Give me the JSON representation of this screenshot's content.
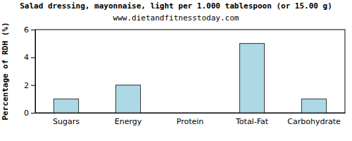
{
  "chart_data": {
    "type": "bar",
    "title": "Salad dressing, mayonnaise, light per 1.000 tablespoon (or 15.00 g)",
    "subtitle": "www.dietandfitnesstoday.com",
    "y_label": "Percentage of RDH (%)",
    "categories": [
      "Sugars",
      "Energy",
      "Protein",
      "Total-Fat",
      "Carbohydrate"
    ],
    "values": [
      1,
      2,
      0,
      5,
      1
    ],
    "color": "#add8e6",
    "ylim": [
      0,
      6
    ],
    "yticks": [
      0,
      2,
      4,
      6
    ],
    "grid": false
  }
}
